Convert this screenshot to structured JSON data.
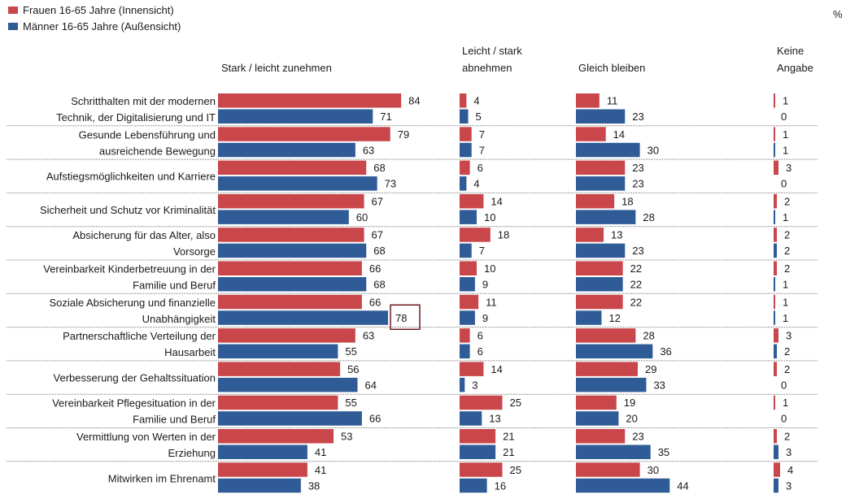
{
  "colors": {
    "female": "#c9464b",
    "male": "#2f5b97",
    "separator": "#777777",
    "highlight": "#6e1a22"
  },
  "legend": [
    {
      "label": "Frauen 16-65 Jahre (Innensicht)",
      "color": "#c9464b"
    },
    {
      "label": "Männer 16-65 Jahre (Außensicht)",
      "color": "#2f5b97"
    }
  ],
  "unit": "%",
  "chart_data": {
    "type": "bar",
    "orientation": "horizontal",
    "grid": false,
    "legend_position": "top-left",
    "unit": "%",
    "columns": [
      {
        "key": "zunehmen",
        "label": [
          "Stark / leicht zunehmen"
        ]
      },
      {
        "key": "abnehmen",
        "label": [
          "Leicht / stark",
          "abnehmen"
        ]
      },
      {
        "key": "gleich",
        "label": [
          "Gleich bleiben"
        ]
      },
      {
        "key": "keine",
        "label": [
          "Keine",
          "Angabe"
        ]
      }
    ],
    "categories": [
      {
        "label": [
          "Schritthalten mit der modernen",
          "Technik, der Digitalisierung und IT"
        ],
        "female": [
          84,
          4,
          11,
          1
        ],
        "male": [
          71,
          5,
          23,
          0
        ]
      },
      {
        "label": [
          "Gesunde Lebensführung und",
          "ausreichende Bewegung"
        ],
        "female": [
          79,
          7,
          14,
          1
        ],
        "male": [
          63,
          7,
          30,
          1
        ]
      },
      {
        "label": [
          "Aufstiegsmöglichkeiten und Karriere"
        ],
        "female": [
          68,
          6,
          23,
          3
        ],
        "male": [
          73,
          4,
          23,
          0
        ]
      },
      {
        "label": [
          "Sicherheit und Schutz vor Kriminalität"
        ],
        "female": [
          67,
          14,
          18,
          2
        ],
        "male": [
          60,
          10,
          28,
          1
        ]
      },
      {
        "label": [
          "Absicherung für das Alter, also",
          "Vorsorge"
        ],
        "female": [
          67,
          18,
          13,
          2
        ],
        "male": [
          68,
          7,
          23,
          2
        ]
      },
      {
        "label": [
          "Vereinbarkeit Kinderbetreuung in der",
          "Familie und Beruf"
        ],
        "female": [
          66,
          10,
          22,
          2
        ],
        "male": [
          68,
          9,
          22,
          1
        ]
      },
      {
        "label": [
          "Soziale Absicherung und finanzielle",
          "Unabhängigkeit"
        ],
        "female": [
          66,
          11,
          22,
          1
        ],
        "male": [
          78,
          9,
          12,
          1
        ]
      },
      {
        "label": [
          "Partnerschaftliche Verteilung der",
          "Hausarbeit"
        ],
        "female": [
          63,
          6,
          28,
          3
        ],
        "male": [
          55,
          6,
          36,
          2
        ]
      },
      {
        "label": [
          "Verbesserung der Gehaltssituation"
        ],
        "female": [
          56,
          14,
          29,
          2
        ],
        "male": [
          64,
          3,
          33,
          0
        ]
      },
      {
        "label": [
          "Vereinbarkeit Pflegesituation in der",
          "Familie und Beruf"
        ],
        "female": [
          55,
          25,
          19,
          1
        ],
        "male": [
          66,
          13,
          20,
          0
        ]
      },
      {
        "label": [
          "Vermittlung von Werten in der",
          "Erziehung"
        ],
        "female": [
          53,
          21,
          23,
          2
        ],
        "male": [
          41,
          21,
          35,
          3
        ]
      },
      {
        "label": [
          "Mitwirken im Ehrenamt"
        ],
        "female": [
          41,
          25,
          30,
          4
        ],
        "male": [
          38,
          16,
          44,
          3
        ]
      }
    ],
    "series": [
      {
        "name": "Frauen 16-65 Jahre (Innensicht)",
        "key": "female"
      },
      {
        "name": "Männer 16-65 Jahre (Außensicht)",
        "key": "male"
      }
    ],
    "highlight": {
      "category_index": 6,
      "series": "male",
      "column": 0,
      "value": 78
    }
  }
}
